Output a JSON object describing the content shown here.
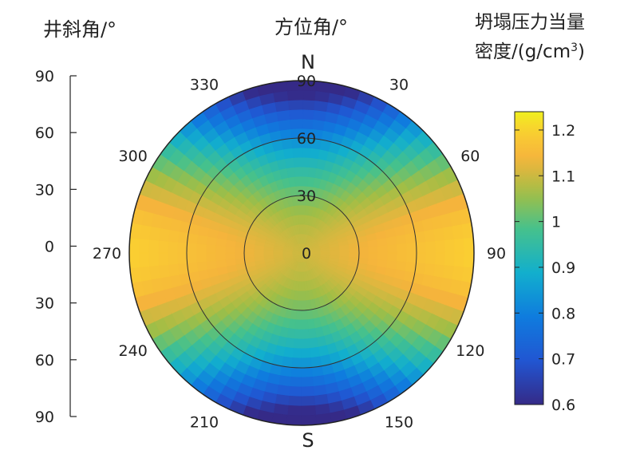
{
  "chart_data": {
    "type": "heatmap",
    "subtype": "polar-stereonet",
    "left_axis": {
      "label": "井斜角/°",
      "ticks": [
        "90",
        "60",
        "30",
        "0",
        "30",
        "60",
        "90"
      ],
      "range": [
        90,
        0,
        90
      ]
    },
    "polar_axis": {
      "label": "方位角/°",
      "north_label": "N",
      "south_label": "S",
      "azimuth_ticks": [
        {
          "deg": 30,
          "text": "30"
        },
        {
          "deg": 60,
          "text": "60"
        },
        {
          "deg": 90,
          "text": "90"
        },
        {
          "deg": 120,
          "text": "120"
        },
        {
          "deg": 150,
          "text": "150"
        },
        {
          "deg": 210,
          "text": "210"
        },
        {
          "deg": 240,
          "text": "240"
        },
        {
          "deg": 270,
          "text": "270"
        },
        {
          "deg": 300,
          "text": "300"
        },
        {
          "deg": 330,
          "text": "330"
        }
      ],
      "radial_ticks": [
        {
          "value": 0,
          "text": "0"
        },
        {
          "value": 30,
          "text": "30"
        },
        {
          "value": 60,
          "text": "60"
        },
        {
          "value": 90,
          "text": "90"
        }
      ],
      "radial_range": [
        0,
        90
      ],
      "grid_circles": [
        30,
        60
      ]
    },
    "colorbar": {
      "title_line1": "坍塌压力当量",
      "title_line2": "密度/(g/cm",
      "title_sup": "3",
      "title_close": ")",
      "range": [
        0.6,
        1.24
      ],
      "ticks": [
        {
          "value": 0.6,
          "text": "0.6"
        },
        {
          "value": 0.7,
          "text": "0.7"
        },
        {
          "value": 0.8,
          "text": "0.8"
        },
        {
          "value": 0.9,
          "text": "0.9"
        },
        {
          "value": 1.0,
          "text": "1"
        },
        {
          "value": 1.1,
          "text": "1.1"
        },
        {
          "value": 1.2,
          "text": "1.2"
        }
      ],
      "colormap": "parula"
    },
    "field_description": {
      "min_value": 0.6,
      "max_value": 1.24,
      "high_along_azimuths": [
        90,
        270
      ],
      "low_along_azimuths": [
        0,
        180
      ]
    }
  }
}
